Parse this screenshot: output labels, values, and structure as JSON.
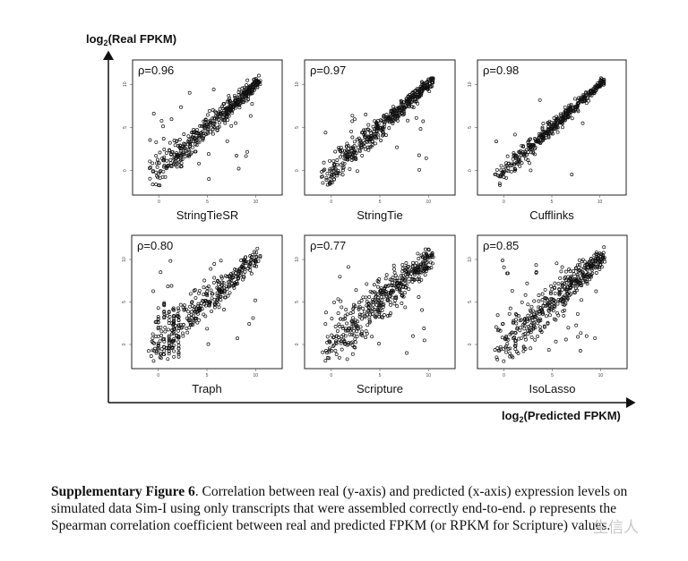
{
  "figure": {
    "y_axis_title": {
      "prefix": "log",
      "sub": "2",
      "rest": "(Real FPKM)"
    },
    "x_axis_title": {
      "prefix": "log",
      "sub": "2",
      "rest": "(Predicted FPKM)"
    }
  },
  "chart_data": [
    {
      "type": "scatter",
      "label": "StringTieSR",
      "rho": "ρ=0.96",
      "x_ticks": [
        "0",
        "5",
        "10"
      ],
      "y_ticks": [
        "0",
        "5",
        "10"
      ]
    },
    {
      "type": "scatter",
      "label": "StringTie",
      "rho": "ρ=0.97",
      "x_ticks": [
        "0",
        "5",
        "10"
      ],
      "y_ticks": [
        "0",
        "5",
        "10"
      ]
    },
    {
      "type": "scatter",
      "label": "Cufflinks",
      "rho": "ρ=0.98",
      "x_ticks": [
        "0",
        "5",
        "10"
      ],
      "y_ticks": [
        "0",
        "5",
        "10"
      ]
    },
    {
      "type": "scatter",
      "label": "Traph",
      "rho": "ρ=0.80",
      "x_ticks": [
        "0",
        "5",
        "10"
      ],
      "y_ticks": [
        "0",
        "5",
        "10"
      ]
    },
    {
      "type": "scatter",
      "label": "Scripture",
      "rho": "ρ=0.77",
      "x_ticks": [
        "0",
        "5",
        "10"
      ],
      "y_ticks": [
        "0",
        "5",
        "10"
      ]
    },
    {
      "type": "scatter",
      "label": "IsoLasso",
      "rho": "ρ=0.85",
      "x_ticks": [
        "0",
        "5",
        "10"
      ],
      "y_ticks": [
        "0",
        "5",
        "10"
      ]
    }
  ],
  "caption": {
    "bold": "Supplementary Figure 6",
    "text": ". Correlation between real (y-axis) and predicted (x-axis) expression levels on simulated data Sim-I using only transcripts that were assembled correctly end-to-end. ρ represents the Spearman correlation coefficient between real and predicted FPKM (or RPKM for Scripture) values."
  },
  "watermark": "生信人"
}
